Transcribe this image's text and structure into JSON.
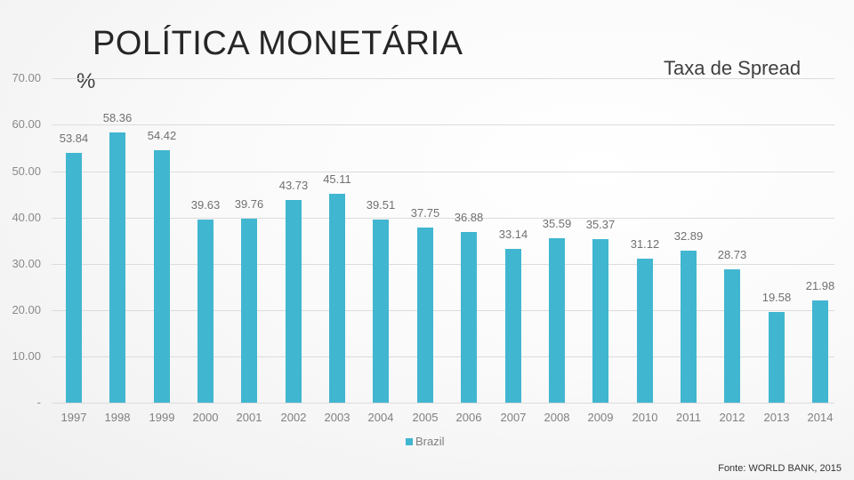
{
  "slide": {
    "title": "POLÍTICA MONETÁRIA",
    "unit_label": "%",
    "source": "Fonte: WORLD BANK, 2015"
  },
  "colors": {
    "bar": "#41b6d0",
    "grid": "#dcdcdc"
  },
  "chart_data": {
    "type": "bar",
    "title": "Taxa de Spread",
    "xlabel": "",
    "ylabel": "%",
    "ylim": [
      0,
      70
    ],
    "grid": true,
    "legend_position": "bottom",
    "y_ticks": [
      "-",
      "10.00",
      "20.00",
      "30.00",
      "40.00",
      "50.00",
      "60.00",
      "70.00"
    ],
    "categories": [
      "1997",
      "1998",
      "1999",
      "2000",
      "2001",
      "2002",
      "2003",
      "2004",
      "2005",
      "2006",
      "2007",
      "2008",
      "2009",
      "2010",
      "2011",
      "2012",
      "2013",
      "2014"
    ],
    "series": [
      {
        "name": "Brazil",
        "color": "#41b6d0",
        "values": [
          53.84,
          58.36,
          54.42,
          39.63,
          39.76,
          43.73,
          45.11,
          39.51,
          37.75,
          36.88,
          33.14,
          35.59,
          35.37,
          31.12,
          32.89,
          28.73,
          19.58,
          21.98
        ],
        "labels": [
          "53.84",
          "58.36",
          "54.42",
          "39.63",
          "39.76",
          "43.73",
          "45.11",
          "39.51",
          "37.75",
          "36.88",
          "33.14",
          "35.59",
          "35.37",
          "31.12",
          "32.89",
          "28.73",
          "19.58",
          "21.98"
        ]
      }
    ]
  }
}
